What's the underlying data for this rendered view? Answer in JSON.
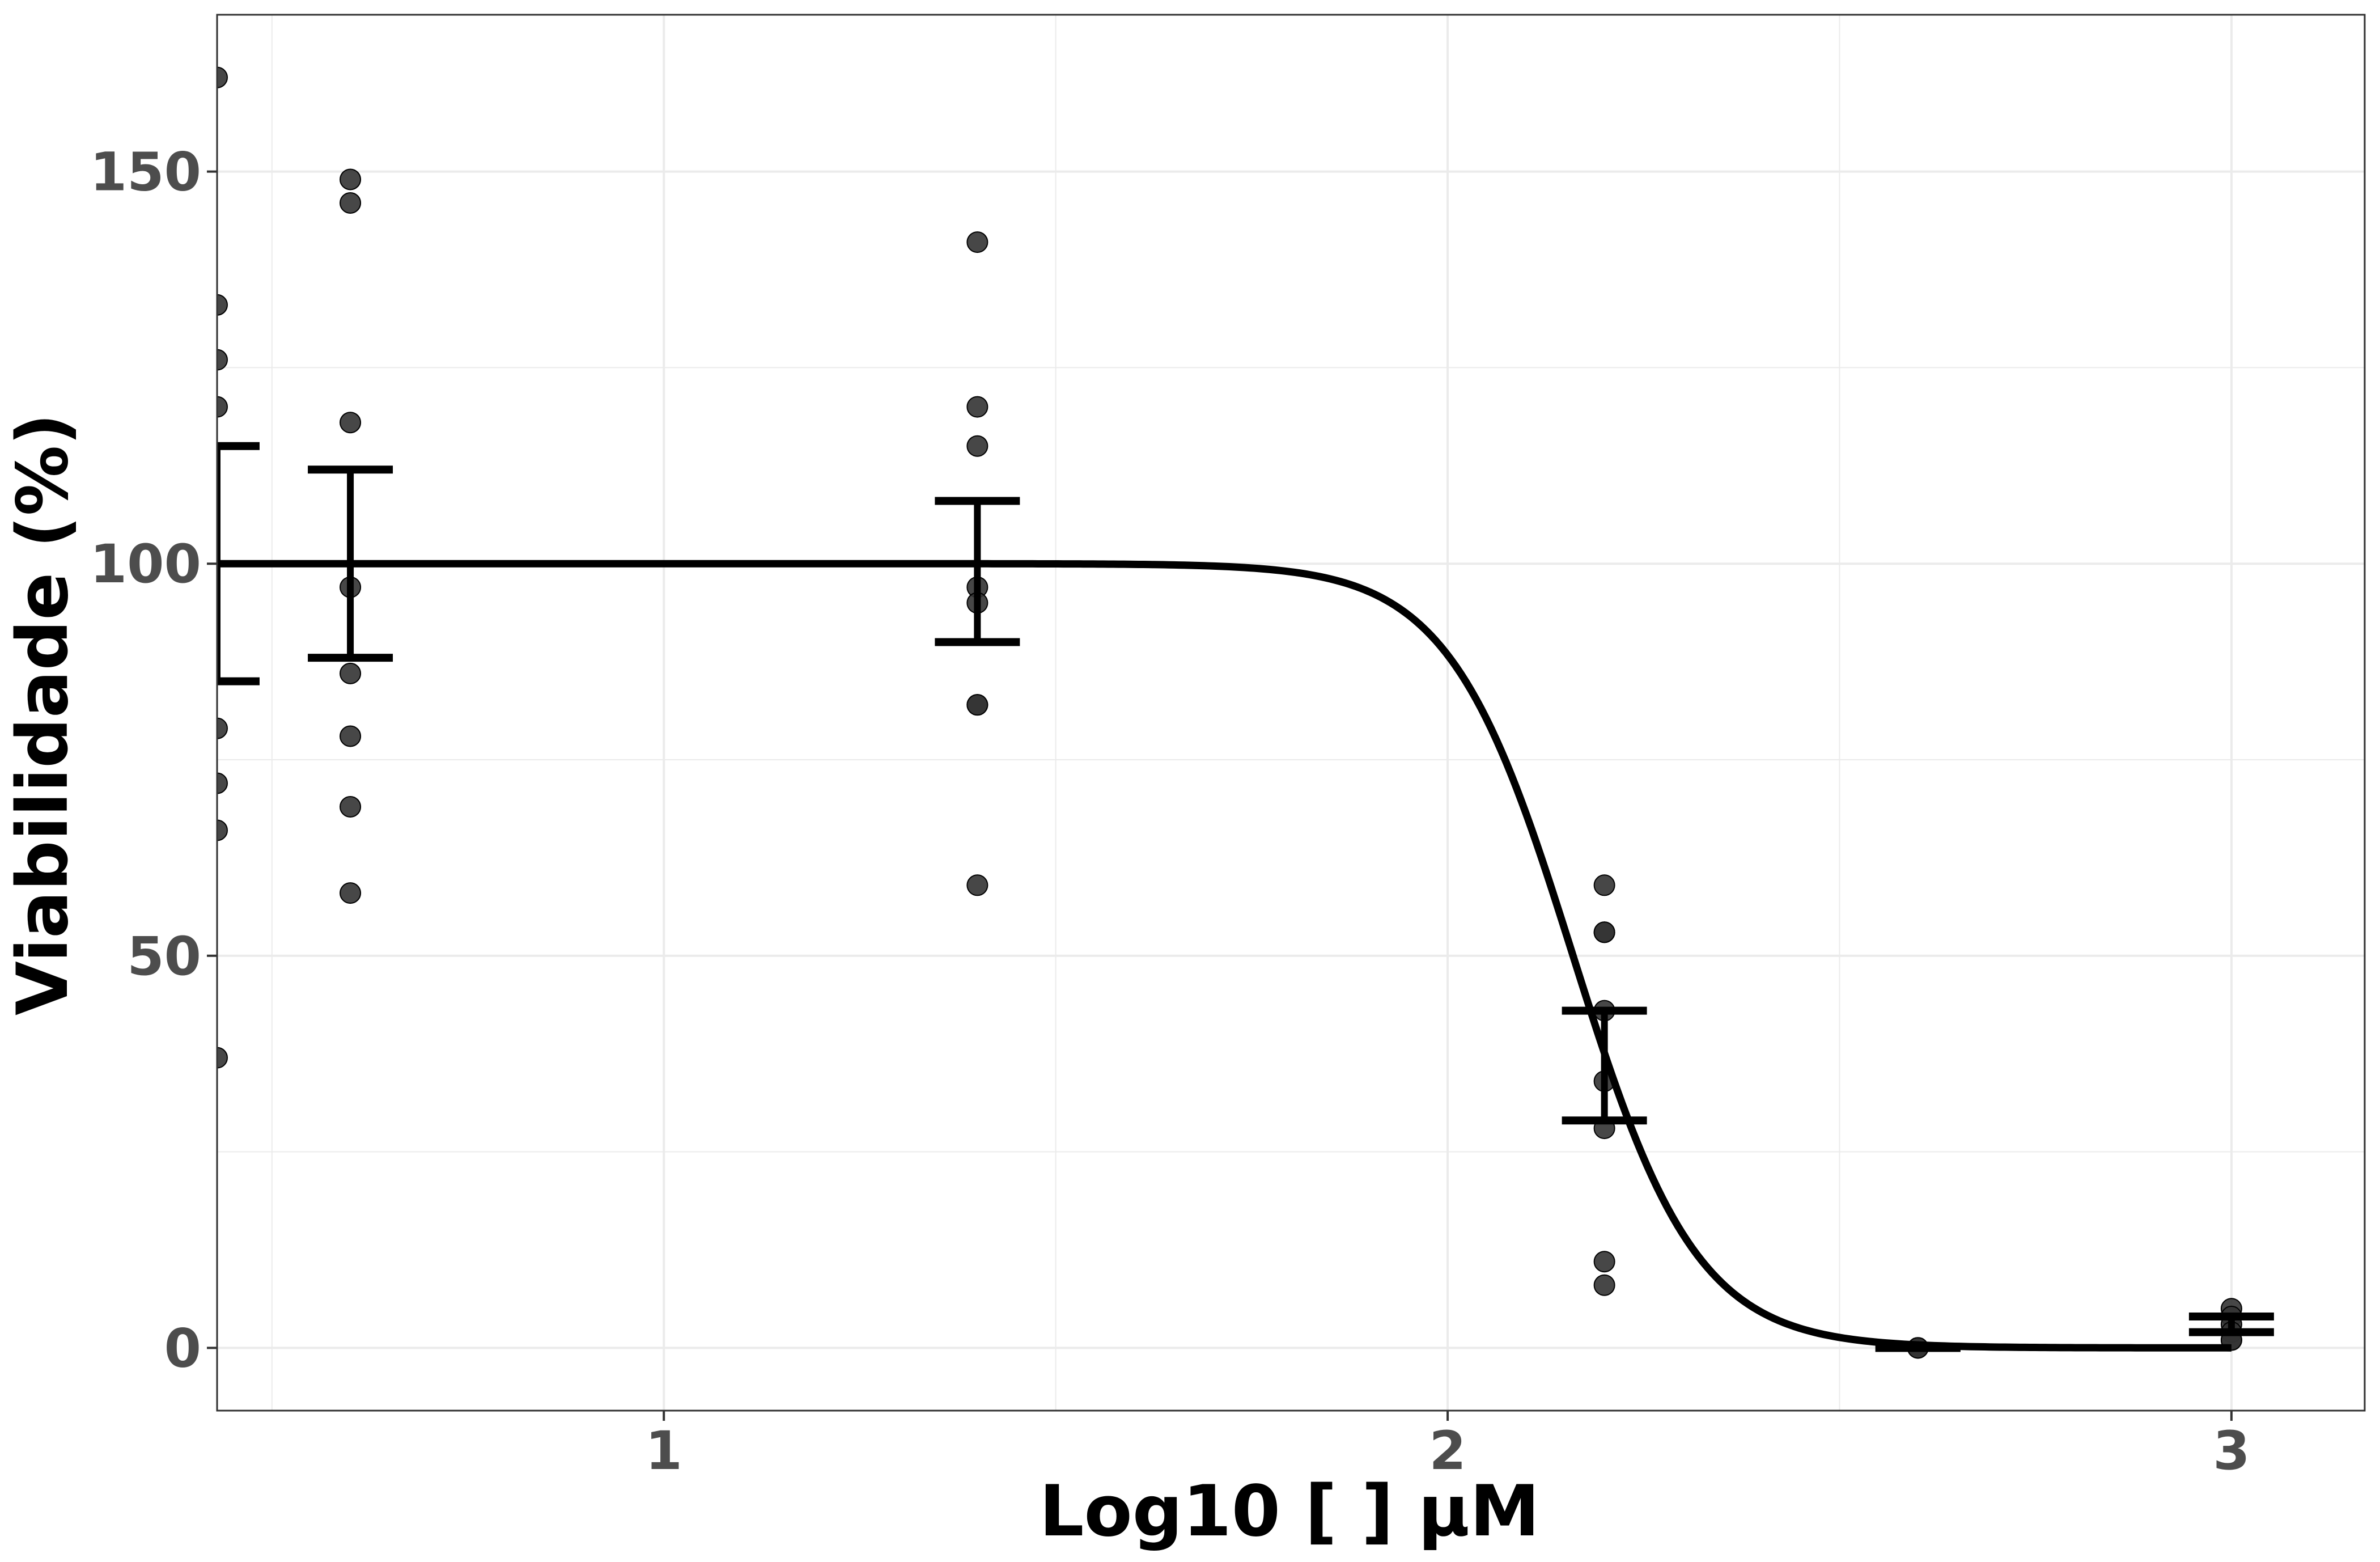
{
  "chart_data": {
    "type": "scatter",
    "title": "",
    "xlabel": "Log10 [   ] µM",
    "ylabel": "Viabilidade (%)",
    "xlim": [
      0.43,
      3.17
    ],
    "ylim": [
      -8,
      170
    ],
    "x_ticks": [
      1,
      2,
      3
    ],
    "x_tick_labels": [
      "1",
      "2",
      "3"
    ],
    "y_ticks": [
      0,
      50,
      100,
      150
    ],
    "y_tick_labels": [
      "0",
      "50",
      "100",
      "150"
    ],
    "grid": true,
    "legend": "none",
    "points": [
      {
        "x": 0.43,
        "values": [
          162,
          133,
          126,
          120,
          79,
          72,
          66,
          37
        ]
      },
      {
        "x": 0.6,
        "values": [
          149,
          146,
          118,
          97,
          86,
          78,
          69,
          58
        ]
      },
      {
        "x": 1.4,
        "values": [
          141,
          120,
          115,
          97,
          95,
          82,
          82,
          59
        ]
      },
      {
        "x": 2.2,
        "values": [
          59,
          53,
          53,
          43,
          34,
          28,
          11,
          8
        ]
      },
      {
        "x": 2.6,
        "values": [
          0,
          0,
          0
        ]
      },
      {
        "x": 3.0,
        "values": [
          5,
          4,
          3,
          2,
          1,
          1
        ]
      }
    ],
    "error_bars": [
      {
        "x": 0.43,
        "mean": 100,
        "lower": 85,
        "upper": 115
      },
      {
        "x": 0.6,
        "mean": 100,
        "lower": 88,
        "upper": 112
      },
      {
        "x": 1.4,
        "mean": 99,
        "lower": 90,
        "upper": 108
      },
      {
        "x": 2.2,
        "mean": 36,
        "lower": 29,
        "upper": 43
      },
      {
        "x": 2.6,
        "mean": 0,
        "lower": 0,
        "upper": 0
      },
      {
        "x": 3.0,
        "mean": 3,
        "lower": 2,
        "upper": 4
      }
    ],
    "fit_curve": {
      "model": "four-parameter logistic",
      "top": 100,
      "bottom": 0,
      "log_ec50": 2.16,
      "hill_slope": 5.5,
      "x_range": [
        0.43,
        3.0
      ]
    },
    "colors": {
      "points": "#333333",
      "curve": "#000000",
      "grid": "#ebebeb",
      "panel_border": "#333333"
    }
  }
}
